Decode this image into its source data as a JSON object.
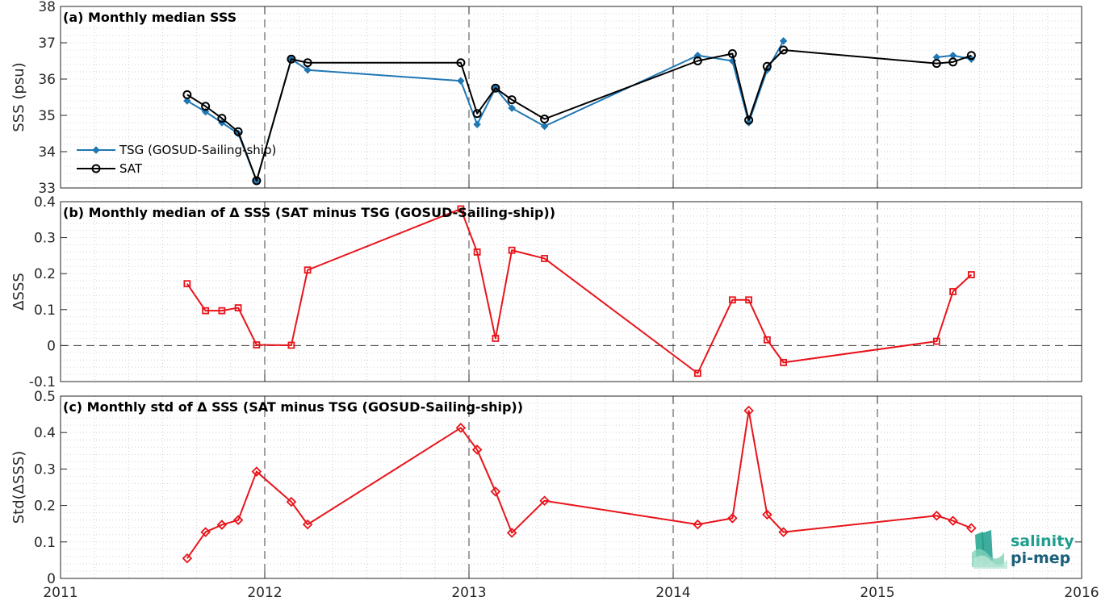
{
  "colors": {
    "tsg": "#1f77b4",
    "sat": "#000000",
    "delta": "#e8141b",
    "logo": "#1f9e8e"
  },
  "logo": {
    "line1": "salinity",
    "line2": "pi-mep"
  },
  "chart_data": [
    {
      "id": "a",
      "type": "line",
      "title": "(a) Monthly median SSS",
      "ylabel": "SSS (psu)",
      "xlim": [
        2011,
        2016
      ],
      "ylim": [
        33,
        38
      ],
      "xticks": [
        2011,
        2012,
        2013,
        2014,
        2015,
        2016
      ],
      "yticks": [
        33,
        34,
        35,
        36,
        37,
        38
      ],
      "legend": "lower-left",
      "series": [
        {
          "name": "TSG (GOSUD-Sailing-ship)",
          "marker": "diamond-filled",
          "color_key": "tsg",
          "x": [
            2011.62,
            2011.71,
            2011.79,
            2011.87,
            2011.96,
            2012.13,
            2012.21,
            2012.96,
            2013.04,
            2013.13,
            2013.21,
            2013.37,
            2014.12,
            2014.29,
            2014.37,
            2014.46,
            2014.54,
            2014.62,
            2015.29,
            2015.37,
            2015.46
          ],
          "y": [
            35.4,
            35.1,
            34.8,
            34.5,
            33.2,
            36.55,
            36.25,
            35.95,
            34.75,
            35.75,
            35.2,
            34.7,
            36.65,
            36.5,
            34.8,
            36.25,
            37.05,
            null,
            36.6,
            36.65,
            36.55
          ]
        },
        {
          "name": "SAT",
          "marker": "circle-open",
          "color_key": "sat",
          "x": [
            2011.62,
            2011.71,
            2011.79,
            2011.87,
            2011.96,
            2012.13,
            2012.21,
            2012.96,
            2013.04,
            2013.13,
            2013.21,
            2013.37,
            2014.12,
            2014.29,
            2014.37,
            2014.46,
            2014.54,
            2015.29,
            2015.37,
            2015.46
          ],
          "y": [
            35.57,
            35.25,
            34.92,
            34.55,
            33.2,
            36.55,
            36.45,
            36.45,
            35.05,
            35.75,
            35.43,
            34.9,
            36.5,
            36.7,
            34.87,
            36.35,
            36.8,
            36.43,
            36.47,
            36.65
          ]
        }
      ]
    },
    {
      "id": "b",
      "type": "line",
      "title": "(b) Monthly median of Δ SSS (SAT minus TSG (GOSUD-Sailing-ship))",
      "ylabel": "ΔSSS",
      "xlim": [
        2011,
        2016
      ],
      "ylim": [
        -0.1,
        0.4
      ],
      "xticks": [
        2011,
        2012,
        2013,
        2014,
        2015,
        2016
      ],
      "yticks": [
        -0.1,
        0,
        0.1,
        0.2,
        0.3,
        0.4
      ],
      "ytick_labels": [
        "-0.1",
        "0",
        "0.1",
        "0.2",
        "0.3",
        "0.4"
      ],
      "zero_line": true,
      "series": [
        {
          "name": "",
          "marker": "square-open",
          "color_key": "delta",
          "x": [
            2011.62,
            2011.71,
            2011.79,
            2011.87,
            2011.96,
            2012.13,
            2012.21,
            2012.96,
            2013.04,
            2013.13,
            2013.21,
            2013.37,
            2014.12,
            2014.29,
            2014.37,
            2014.46,
            2014.54,
            2015.29,
            2015.37,
            2015.46
          ],
          "y": [
            0.172,
            0.097,
            0.097,
            0.105,
            0.002,
            0.001,
            0.21,
            0.38,
            0.26,
            0.02,
            0.265,
            0.242,
            -0.077,
            0.127,
            0.127,
            0.016,
            -0.047,
            0.012,
            0.15,
            0.197
          ]
        }
      ]
    },
    {
      "id": "c",
      "type": "line",
      "title": "(c) Monthly std of Δ SSS (SAT minus TSG (GOSUD-Sailing-ship))",
      "ylabel": "Std(ΔSSS)",
      "xlim": [
        2011,
        2016
      ],
      "ylim": [
        0,
        0.5
      ],
      "xticks": [
        2011,
        2012,
        2013,
        2014,
        2015,
        2016
      ],
      "yticks": [
        0,
        0.1,
        0.2,
        0.3,
        0.4,
        0.5
      ],
      "ytick_labels": [
        "0",
        "0.1",
        "0.2",
        "0.3",
        "0.4",
        "0.5"
      ],
      "xtick_labels": [
        "2011",
        "2012",
        "2013",
        "2014",
        "2015",
        "2016"
      ],
      "series": [
        {
          "name": "",
          "marker": "diamond-open",
          "color_key": "delta",
          "x": [
            2011.62,
            2011.71,
            2011.79,
            2011.87,
            2011.96,
            2012.13,
            2012.21,
            2012.96,
            2013.04,
            2013.13,
            2013.21,
            2013.37,
            2014.12,
            2014.29,
            2014.37,
            2014.46,
            2014.54,
            2015.29,
            2015.37,
            2015.46
          ],
          "y": [
            0.055,
            0.127,
            0.147,
            0.16,
            0.293,
            0.21,
            0.148,
            0.413,
            0.353,
            0.238,
            0.125,
            0.213,
            0.148,
            0.165,
            0.46,
            0.175,
            0.127,
            0.172,
            0.158,
            0.138
          ]
        }
      ]
    }
  ]
}
